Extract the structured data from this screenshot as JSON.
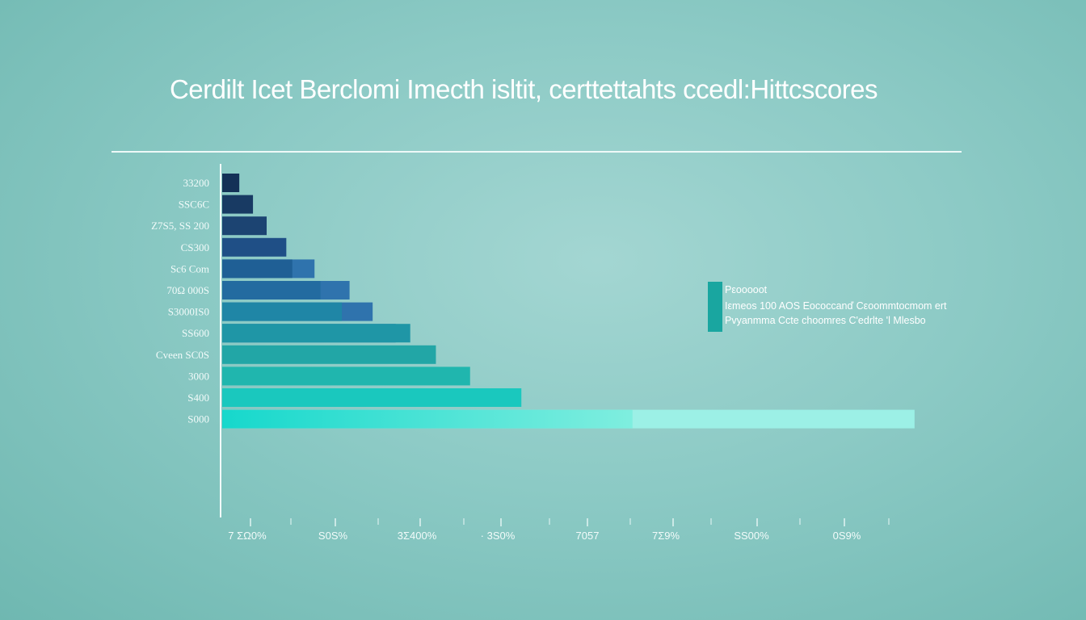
{
  "chart_data": {
    "type": "bar",
    "orientation": "horizontal",
    "title": "Cerdilt Icet Berclomi Imecth isltit, certtettahts ccedl:Hittcscores",
    "categories": [
      "33200",
      "SSC6C",
      "Z7S5, SS 200",
      "CS300",
      "Sc6 Com",
      "70Ω 000S",
      "S3000IS0",
      "SS600",
      "Cveen SC0S",
      "3000",
      "S400",
      "S000"
    ],
    "series": [
      {
        "values": [
          2,
          3.6,
          5.2,
          7.5,
          8.2,
          11.5,
          14,
          22,
          25,
          29,
          35,
          48
        ]
      },
      {
        "values": [
          null,
          null,
          null,
          null,
          10.8,
          14.9,
          17.6,
          20.3,
          null,
          null,
          null,
          null
        ]
      },
      {
        "values": [
          null,
          null,
          null,
          null,
          null,
          null,
          null,
          null,
          null,
          null,
          null,
          81
        ]
      }
    ],
    "x_ticks": [
      "7 ΣΩ0%",
      "S0S%",
      "3Σ400%",
      "· 3S0%",
      "7057",
      "7Σ9%",
      "SS00%",
      "0S9%"
    ],
    "legend": {
      "placement": "right",
      "lines": [
        "Pεοοοοοt",
        "Iεmeos 100 AOS Eococcanď Cεoommtocmom ert",
        "Pvyanmma Ccte choomres C'edrlte 'l Mlesbo"
      ]
    },
    "xlim": [
      0,
      86.5
    ],
    "grid": false,
    "colors": [
      "#143157",
      "#1a3f6e",
      "#1f4f86",
      "#236ba0",
      "#1f92a6",
      "#26a6a8",
      "#22b8ae",
      "#1fcbbe",
      "#14e0d3",
      "#93eee4"
    ]
  }
}
